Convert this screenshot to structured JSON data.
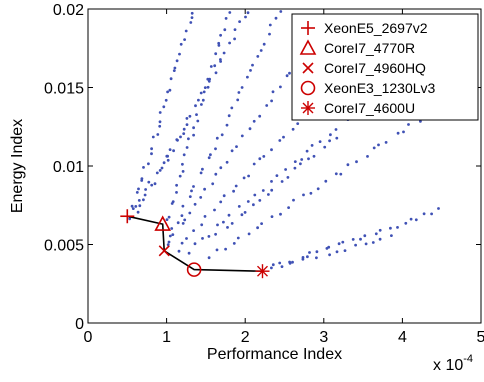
{
  "chart_data": {
    "type": "scatter",
    "title": "",
    "xlabel": "Performance Index",
    "ylabel": "Energy Index",
    "x_exponent_label": "x 10",
    "x_exponent_power": "-4",
    "xlim": [
      0,
      5
    ],
    "ylim": [
      0,
      0.02
    ],
    "x_ticks": [
      0,
      1,
      2,
      3,
      4,
      5
    ],
    "x_tick_labels": [
      "0",
      "1",
      "2",
      "3",
      "4",
      "5"
    ],
    "y_ticks": [
      0,
      0.005,
      0.01,
      0.015,
      0.02
    ],
    "y_tick_labels": [
      "0",
      "0.005",
      "0.01",
      "0.015",
      "0.02"
    ],
    "grid": false,
    "legend_position": "top-right",
    "cloud_color": "#3f51b5",
    "marker_color": "#cc0000",
    "frontier_color": "#000000",
    "cloud_rays": [
      {
        "x0": 0.55,
        "y0": 0.007,
        "x1": 1.35,
        "y1": 0.02,
        "n": 30
      },
      {
        "x0": 0.6,
        "y0": 0.0068,
        "x1": 2.05,
        "y1": 0.02,
        "n": 32
      },
      {
        "x0": 0.98,
        "y0": 0.0062,
        "x1": 1.8,
        "y1": 0.02,
        "n": 30
      },
      {
        "x0": 0.98,
        "y0": 0.0048,
        "x1": 2.45,
        "y1": 0.02,
        "n": 32
      },
      {
        "x0": 1.0,
        "y0": 0.005,
        "x1": 3.0,
        "y1": 0.019,
        "n": 30
      },
      {
        "x0": 1.1,
        "y0": 0.0045,
        "x1": 3.35,
        "y1": 0.0165,
        "n": 30
      },
      {
        "x0": 1.2,
        "y0": 0.0042,
        "x1": 4.25,
        "y1": 0.017,
        "n": 32
      },
      {
        "x0": 1.5,
        "y0": 0.004,
        "x1": 4.85,
        "y1": 0.015,
        "n": 34
      },
      {
        "x0": 2.3,
        "y0": 0.0035,
        "x1": 4.5,
        "y1": 0.0072,
        "n": 24
      },
      {
        "x0": 2.3,
        "y0": 0.0035,
        "x1": 3.9,
        "y1": 0.0055,
        "n": 14
      },
      {
        "x0": 0.5,
        "y0": 0.0065,
        "x1": 1.3,
        "y1": 0.013,
        "n": 12
      },
      {
        "x0": 1.6,
        "y0": 0.0055,
        "x1": 3.2,
        "y1": 0.012,
        "n": 18
      }
    ],
    "series": [
      {
        "name": "XeonE5_2697v2",
        "marker": "plus",
        "x": [
          0.5
        ],
        "y": [
          0.0068
        ]
      },
      {
        "name": "CoreI7_4770R",
        "marker": "triangle",
        "x": [
          0.95
        ],
        "y": [
          0.0063
        ]
      },
      {
        "name": "CoreI7_4960HQ",
        "marker": "cross",
        "x": [
          0.97
        ],
        "y": [
          0.0046
        ]
      },
      {
        "name": "XeonE3_1230Lv3",
        "marker": "circle",
        "x": [
          1.35
        ],
        "y": [
          0.0034
        ]
      },
      {
        "name": "CoreI7_4600U",
        "marker": "star",
        "x": [
          2.22
        ],
        "y": [
          0.0033
        ]
      }
    ],
    "frontier": {
      "x": [
        0.5,
        0.95,
        0.97,
        1.35,
        2.22
      ],
      "y": [
        0.0068,
        0.0063,
        0.0046,
        0.0034,
        0.0033
      ]
    }
  }
}
